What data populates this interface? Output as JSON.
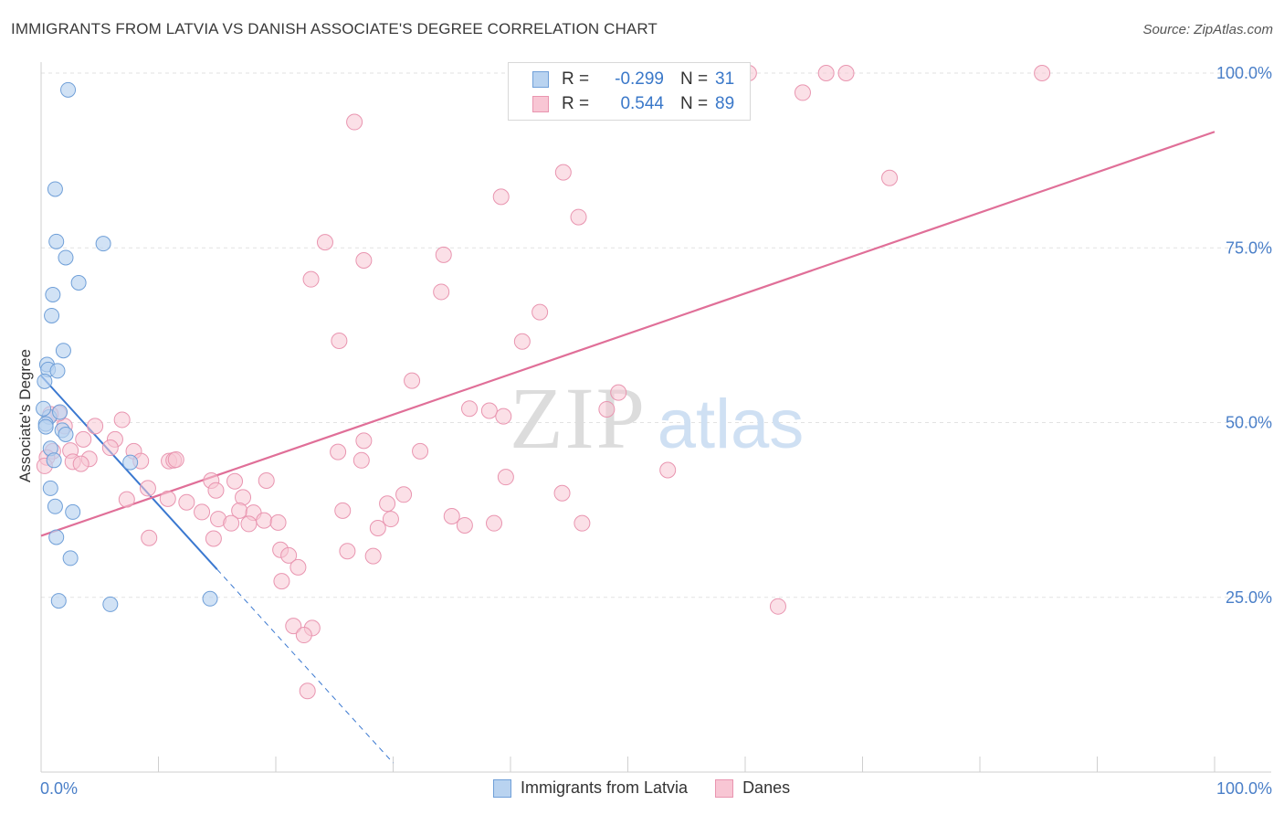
{
  "header": {
    "title": "IMMIGRANTS FROM LATVIA VS DANISH ASSOCIATE'S DEGREE CORRELATION CHART",
    "source": "Source: ZipAtlas.com"
  },
  "legend": {
    "series1": {
      "r_label": "R =",
      "r_value": "-0.299",
      "n_label": "N =",
      "n_value": "31"
    },
    "series2": {
      "r_label": "R =",
      "r_value": "0.544",
      "n_label": "N =",
      "n_value": "89"
    }
  },
  "bottom_legend": {
    "series1": "Immigrants from Latvia",
    "series2": "Danes"
  },
  "watermark": {
    "zip": "ZIP",
    "atlas": "atlas"
  },
  "colors": {
    "latvia_fill": "#b9d3f0",
    "latvia_stroke": "#6f9fd8",
    "latvia_line": "#3a78d0",
    "danes_fill": "#f8c6d4",
    "danes_stroke": "#e995b0",
    "danes_line": "#e06f98",
    "axis_text": "#4a7fc8",
    "grid": "#e2e2e2"
  },
  "chart_data": {
    "type": "scatter",
    "title": "IMMIGRANTS FROM LATVIA VS DANISH ASSOCIATE'S DEGREE CORRELATION CHART",
    "xlabel": "",
    "ylabel": "Associate's Degree",
    "xlim": [
      0,
      100
    ],
    "ylim": [
      0,
      100
    ],
    "x_tick_labels": {
      "left": "0.0%",
      "right": "100.0%"
    },
    "y_ticks": [
      {
        "value": 25,
        "label": "25.0%"
      },
      {
        "value": 50,
        "label": "50.0%"
      },
      {
        "value": 75,
        "label": "75.0%"
      },
      {
        "value": 100,
        "label": "100.0%"
      }
    ],
    "grid": true,
    "legend_position": "top-center",
    "series": [
      {
        "name": "Immigrants from Latvia",
        "r": -0.299,
        "n": 31,
        "trend": {
          "x0": 0.0,
          "y0": 56.7,
          "x1": 15.0,
          "y1": 29.0,
          "dash_to_x": 30.0
        },
        "points": [
          [
            2.3,
            97.6
          ],
          [
            1.2,
            83.4
          ],
          [
            1.3,
            75.9
          ],
          [
            2.1,
            73.6
          ],
          [
            5.3,
            75.6
          ],
          [
            3.2,
            70.0
          ],
          [
            1.0,
            68.3
          ],
          [
            0.9,
            65.3
          ],
          [
            1.9,
            60.3
          ],
          [
            0.5,
            58.3
          ],
          [
            0.6,
            57.6
          ],
          [
            1.4,
            57.4
          ],
          [
            0.3,
            55.9
          ],
          [
            0.7,
            50.8
          ],
          [
            0.4,
            49.8
          ],
          [
            1.8,
            48.9
          ],
          [
            2.1,
            48.3
          ],
          [
            0.8,
            46.3
          ],
          [
            1.1,
            44.6
          ],
          [
            7.6,
            44.3
          ],
          [
            0.8,
            40.6
          ],
          [
            1.2,
            38.0
          ],
          [
            2.7,
            37.2
          ],
          [
            1.3,
            33.6
          ],
          [
            2.5,
            30.6
          ],
          [
            1.5,
            24.5
          ],
          [
            5.9,
            24.0
          ],
          [
            14.4,
            24.8
          ],
          [
            0.4,
            49.4
          ],
          [
            0.2,
            52.0
          ],
          [
            1.6,
            51.5
          ]
        ]
      },
      {
        "name": "Danes",
        "r": 0.544,
        "n": 89,
        "trend": {
          "x0": 0.0,
          "y0": 33.8,
          "x1": 100.0,
          "y1": 91.6
        },
        "points": [
          [
            60.3,
            100.0
          ],
          [
            66.9,
            100.0
          ],
          [
            68.6,
            100.0
          ],
          [
            85.3,
            100.0
          ],
          [
            64.9,
            97.2
          ],
          [
            26.7,
            93.0
          ],
          [
            44.5,
            85.8
          ],
          [
            72.3,
            85.0
          ],
          [
            39.2,
            82.3
          ],
          [
            45.8,
            79.4
          ],
          [
            24.2,
            75.8
          ],
          [
            34.3,
            74.0
          ],
          [
            27.5,
            73.2
          ],
          [
            23.0,
            70.5
          ],
          [
            34.1,
            68.7
          ],
          [
            42.5,
            65.8
          ],
          [
            25.4,
            61.7
          ],
          [
            41.0,
            61.6
          ],
          [
            31.6,
            56.0
          ],
          [
            49.2,
            54.3
          ],
          [
            38.2,
            51.7
          ],
          [
            36.5,
            52.0
          ],
          [
            48.2,
            51.9
          ],
          [
            39.4,
            50.9
          ],
          [
            6.9,
            50.4
          ],
          [
            4.6,
            49.5
          ],
          [
            2.0,
            49.5
          ],
          [
            1.5,
            51.3
          ],
          [
            0.8,
            51.2
          ],
          [
            2.5,
            46.0
          ],
          [
            1.0,
            45.9
          ],
          [
            0.5,
            45.0
          ],
          [
            0.3,
            43.8
          ],
          [
            3.6,
            47.6
          ],
          [
            6.3,
            47.6
          ],
          [
            7.9,
            45.9
          ],
          [
            5.9,
            46.4
          ],
          [
            4.1,
            44.8
          ],
          [
            2.7,
            44.4
          ],
          [
            3.4,
            44.1
          ],
          [
            8.5,
            44.5
          ],
          [
            10.9,
            44.5
          ],
          [
            11.3,
            44.6
          ],
          [
            11.5,
            44.7
          ],
          [
            25.3,
            45.8
          ],
          [
            27.5,
            47.4
          ],
          [
            32.3,
            45.9
          ],
          [
            27.3,
            44.6
          ],
          [
            39.6,
            42.2
          ],
          [
            53.4,
            43.2
          ],
          [
            44.4,
            39.9
          ],
          [
            9.1,
            40.6
          ],
          [
            14.5,
            41.7
          ],
          [
            16.5,
            41.6
          ],
          [
            19.2,
            41.7
          ],
          [
            14.9,
            40.3
          ],
          [
            10.8,
            39.1
          ],
          [
            7.3,
            39.0
          ],
          [
            17.2,
            39.3
          ],
          [
            12.4,
            38.6
          ],
          [
            30.9,
            39.7
          ],
          [
            29.5,
            38.4
          ],
          [
            25.7,
            37.4
          ],
          [
            13.7,
            37.2
          ],
          [
            16.9,
            37.4
          ],
          [
            18.1,
            37.1
          ],
          [
            15.1,
            36.2
          ],
          [
            16.2,
            35.6
          ],
          [
            17.7,
            35.5
          ],
          [
            19.0,
            36.0
          ],
          [
            20.2,
            35.7
          ],
          [
            29.8,
            36.2
          ],
          [
            35.0,
            36.6
          ],
          [
            38.6,
            35.6
          ],
          [
            36.1,
            35.3
          ],
          [
            28.7,
            34.9
          ],
          [
            46.1,
            35.6
          ],
          [
            9.2,
            33.5
          ],
          [
            14.7,
            33.4
          ],
          [
            20.4,
            31.8
          ],
          [
            21.1,
            31.0
          ],
          [
            26.1,
            31.6
          ],
          [
            28.3,
            30.9
          ],
          [
            21.9,
            29.3
          ],
          [
            20.5,
            27.3
          ],
          [
            62.8,
            23.7
          ],
          [
            21.5,
            20.9
          ],
          [
            23.1,
            20.6
          ],
          [
            22.4,
            19.6
          ],
          [
            22.7,
            11.6
          ]
        ]
      }
    ]
  }
}
